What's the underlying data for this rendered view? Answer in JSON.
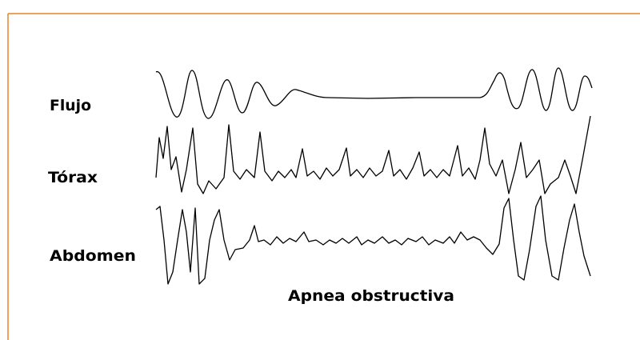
{
  "labels": {
    "flow": "Flujo",
    "thorax": "Tórax",
    "abdomen": "Abdomen"
  },
  "caption": "Apnea obstructiva"
}
